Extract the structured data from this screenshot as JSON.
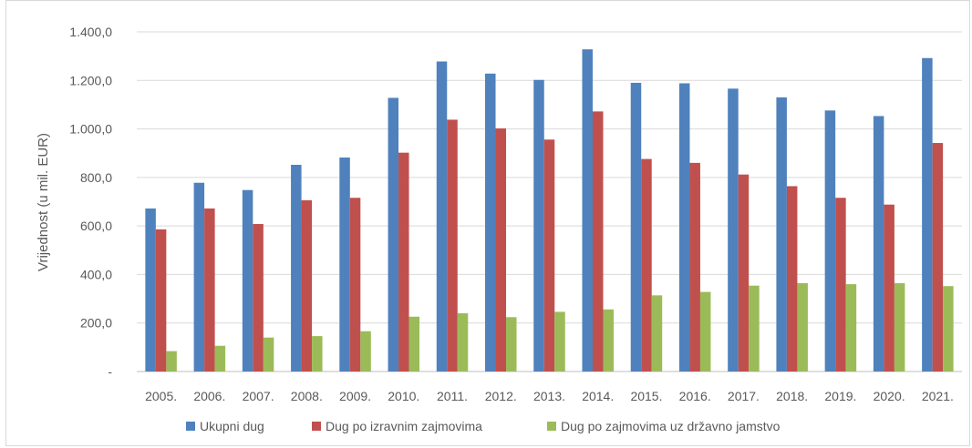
{
  "chart_data": {
    "type": "bar",
    "title": "",
    "xlabel": "",
    "ylabel": "Vrijednost (u mil. EUR)",
    "ylim": [
      0,
      1400
    ],
    "yticks": [
      0,
      200,
      400,
      600,
      800,
      1000,
      1200,
      1400
    ],
    "ytick_labels": [
      "-",
      "200,0",
      "400,0",
      "600,0",
      "800,0",
      "1.000,0",
      "1.200,0",
      "1.400,0"
    ],
    "grid": true,
    "legend_position": "bottom",
    "categories": [
      "2005.",
      "2006.",
      "2007.",
      "2008.",
      "2009.",
      "2010.",
      "2011.",
      "2012.",
      "2013.",
      "2014.",
      "2015.",
      "2016.",
      "2017.",
      "2018.",
      "2019.",
      "2020.",
      "2021."
    ],
    "series": [
      {
        "name": "Ukupni dug",
        "color": "#4f81bd",
        "values": [
          672,
          778,
          748,
          852,
          882,
          1128,
          1278,
          1228,
          1202,
          1328,
          1190,
          1188,
          1166,
          1130,
          1076,
          1053,
          1292
        ]
      },
      {
        "name": "Dug po izravnim zajmovima",
        "color": "#c0504d",
        "values": [
          586,
          672,
          608,
          706,
          716,
          902,
          1038,
          1002,
          956,
          1072,
          876,
          860,
          812,
          764,
          716,
          688,
          942
        ]
      },
      {
        "name": "Dug po zajmovima uz državno jamstvo",
        "color": "#9bbb59",
        "values": [
          84,
          106,
          140,
          146,
          166,
          226,
          240,
          224,
          246,
          256,
          314,
          328,
          354,
          364,
          360,
          364,
          352
        ]
      }
    ]
  }
}
